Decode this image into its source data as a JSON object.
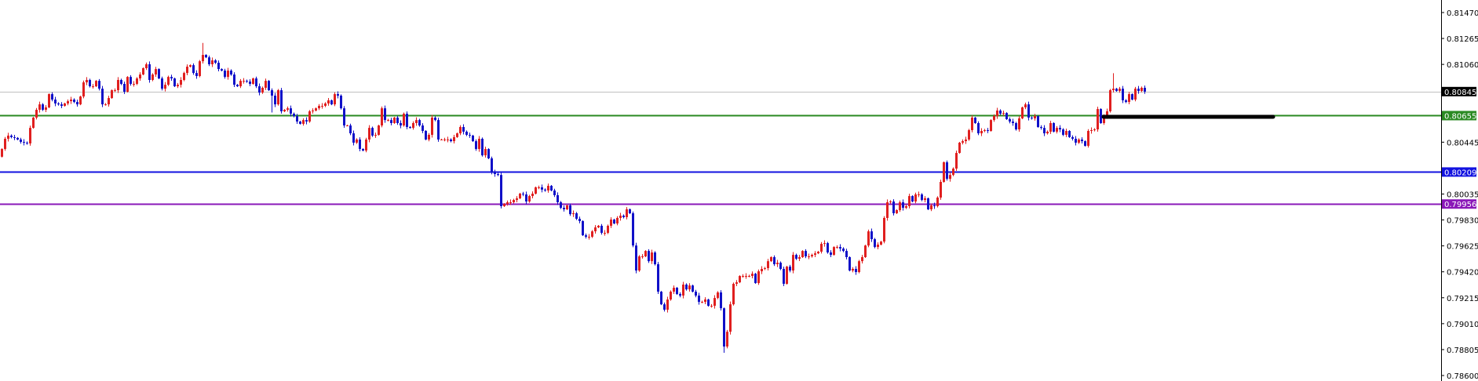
{
  "chart_data": {
    "type": "candlestick",
    "title": "",
    "xlabel": "",
    "ylabel": "",
    "ylim": [
      0.786,
      0.8147
    ],
    "grid": false,
    "y_ticks": [
      "0.81470",
      "0.81265",
      "0.81060",
      "0.80445",
      "0.80035",
      "0.79830",
      "0.79625",
      "0.79420",
      "0.79215",
      "0.79010",
      "0.78805",
      "0.78600"
    ],
    "colors": {
      "bull": "#e01f1f",
      "bear": "#1010c8",
      "axis": "#000000"
    },
    "first_open": 0.8033,
    "closes": [
      0.80391,
      0.80472,
      0.80497,
      0.80485,
      0.80479,
      0.80466,
      0.80447,
      0.80441,
      0.80435,
      0.80558,
      0.80639,
      0.80701,
      0.80744,
      0.80701,
      0.8072,
      0.80825,
      0.80782,
      0.80751,
      0.80744,
      0.80732,
      0.80751,
      0.80769,
      0.80782,
      0.80763,
      0.80744,
      0.80806,
      0.80918,
      0.80937,
      0.80887,
      0.80887,
      0.8093,
      0.80868,
      0.80744,
      0.80744,
      0.80794,
      0.80856,
      0.80856,
      0.80937,
      0.80906,
      0.80844,
      0.80961,
      0.80906,
      0.80906,
      0.80949,
      0.8098,
      0.8103,
      0.81061,
      0.80937,
      0.8098,
      0.81023,
      0.80949,
      0.80868,
      0.80899,
      0.80961,
      0.80949,
      0.80887,
      0.80899,
      0.80937,
      0.80992,
      0.81042,
      0.81054,
      0.80992,
      0.80968,
      0.81085,
      0.81135,
      0.81116,
      0.81061,
      0.81092,
      0.81073,
      0.81023,
      0.81011,
      0.80961,
      0.81011,
      0.8098,
      0.80899,
      0.80887,
      0.8093,
      0.8093,
      0.80924,
      0.80906,
      0.80949,
      0.80887,
      0.80837,
      0.80875,
      0.8093,
      0.80856,
      0.80813,
      0.80744,
      0.80856,
      0.80689,
      0.80701,
      0.80713,
      0.8067,
      0.80651,
      0.80608,
      0.8059,
      0.8062,
      0.80608,
      0.80689,
      0.80695,
      0.80713,
      0.80732,
      0.80732,
      0.80751,
      0.80776,
      0.80744,
      0.80825,
      0.80813,
      0.80713,
      0.80577,
      0.80577,
      0.80515,
      0.80441,
      0.80466,
      0.80391,
      0.80379,
      0.80466,
      0.80558,
      0.80497,
      0.80503,
      0.80577,
      0.80713,
      0.8062,
      0.8062,
      0.80596,
      0.80639,
      0.80596,
      0.80577,
      0.8067,
      0.80565,
      0.80558,
      0.80596,
      0.8062,
      0.80577,
      0.80534,
      0.80466,
      0.80503,
      0.80639,
      0.8062,
      0.80466,
      0.80466,
      0.80466,
      0.80466,
      0.80453,
      0.80485,
      0.80515,
      0.80565,
      0.80528,
      0.80503,
      0.80497,
      0.80453,
      0.80391,
      0.80472,
      0.80341,
      0.80391,
      0.80317,
      0.80205,
      0.80193,
      0.80186,
      0.79939,
      0.79957,
      0.7997,
      0.7997,
      0.79988,
      0.80001,
      0.80038,
      0.80032,
      0.79976,
      0.80019,
      0.80038,
      0.80088,
      0.80088,
      0.8007,
      0.80063,
      0.801,
      0.80063,
      0.80026,
      0.7997,
      0.79926,
      0.79914,
      0.79945,
      0.79876,
      0.79883,
      0.79839,
      0.79821,
      0.79709,
      0.79697,
      0.79697,
      0.7974,
      0.79771,
      0.79784,
      0.79728,
      0.79728,
      0.79784,
      0.79833,
      0.79802,
      0.79846,
      0.79864,
      0.79852,
      0.79914,
      0.79883,
      0.79628,
      0.7943,
      0.79542,
      0.79542,
      0.79585,
      0.79504,
      0.79573,
      0.7948,
      0.79263,
      0.79163,
      0.7912,
      0.79201,
      0.79263,
      0.79294,
      0.79244,
      0.79232,
      0.79319,
      0.79281,
      0.79312,
      0.79263,
      0.79232,
      0.79182,
      0.79182,
      0.79201,
      0.79151,
      0.79151,
      0.79213,
      0.79257,
      0.79132,
      0.78829,
      0.78946,
      0.79163,
      0.79325,
      0.79337,
      0.79387,
      0.79387,
      0.79387,
      0.79387,
      0.79405,
      0.79331,
      0.79424,
      0.79443,
      0.79449,
      0.79504,
      0.79536,
      0.7948,
      0.79492,
      0.79443,
      0.79325,
      0.79461,
      0.7943,
      0.79554,
      0.79523,
      0.79536,
      0.79585,
      0.79542,
      0.79542,
      0.79554,
      0.79566,
      0.79579,
      0.79641,
      0.79647,
      0.79573,
      0.79554,
      0.79616,
      0.79616,
      0.79604,
      0.79585,
      0.79536,
      0.7943,
      0.79443,
      0.79418,
      0.79504,
      0.79536,
      0.79628,
      0.7974,
      0.79678,
      0.79616,
      0.79635,
      0.79659,
      0.79846,
      0.7997,
      0.79976,
      0.79883,
      0.79908,
      0.7997,
      0.79926,
      0.79939,
      0.80019,
      0.79976,
      0.80032,
      0.80032,
      0.79988,
      0.80001,
      0.79914,
      0.79945,
      0.79939,
      0.80007,
      0.80131,
      0.80286,
      0.80155,
      0.80186,
      0.80236,
      0.8036,
      0.80441,
      0.80453,
      0.80466,
      0.8054,
      0.80639,
      0.80596,
      0.80515,
      0.80534,
      0.8054,
      0.80534,
      0.8062,
      0.80651,
      0.80695,
      0.8067,
      0.80676,
      0.80627,
      0.80608,
      0.80596,
      0.80546,
      0.80633,
      0.8072,
      0.80744,
      0.80639,
      0.80633,
      0.80651,
      0.80565,
      0.80558,
      0.80515,
      0.80528,
      0.80596,
      0.80528,
      0.80558,
      0.80546,
      0.80503,
      0.80534,
      0.80485,
      0.80472,
      0.80441,
      0.80466,
      0.80453,
      0.80416,
      0.80534,
      0.8054,
      0.80546,
      0.80707,
      0.80596,
      0.80651,
      0.80689,
      0.80856,
      0.80868,
      0.8085,
      0.80868,
      0.80776,
      0.80763,
      0.80825,
      0.80782,
      0.80868,
      0.8085,
      0.80875,
      0.80845
    ],
    "extreme_wicks": {
      "low": {
        "230": 0.7878,
        "86": 0.8068
      },
      "high": {
        "64": 0.8123,
        "354": 0.8099
      }
    },
    "horizontal_lines": [
      {
        "name": "current-price",
        "value": 0.80845,
        "label": "0.80845",
        "color": "#c0c0c0",
        "label_bg": "#000000"
      },
      {
        "name": "green-level",
        "value": 0.80655,
        "label": "0.80655",
        "color": "#2a8a22",
        "label_bg": "#2a8a22"
      },
      {
        "name": "blue-level",
        "value": 0.80209,
        "label": "0.80209",
        "color": "#1212e0",
        "label_bg": "#1212e0"
      },
      {
        "name": "purple-level",
        "value": 0.79956,
        "label": "0.79956",
        "color": "#8a18b8",
        "label_bg": "#8a18b8"
      }
    ],
    "marker_segment": {
      "value": 0.80652,
      "color": "#000000",
      "from_candle": 351,
      "to_candle_offset": 54
    }
  }
}
